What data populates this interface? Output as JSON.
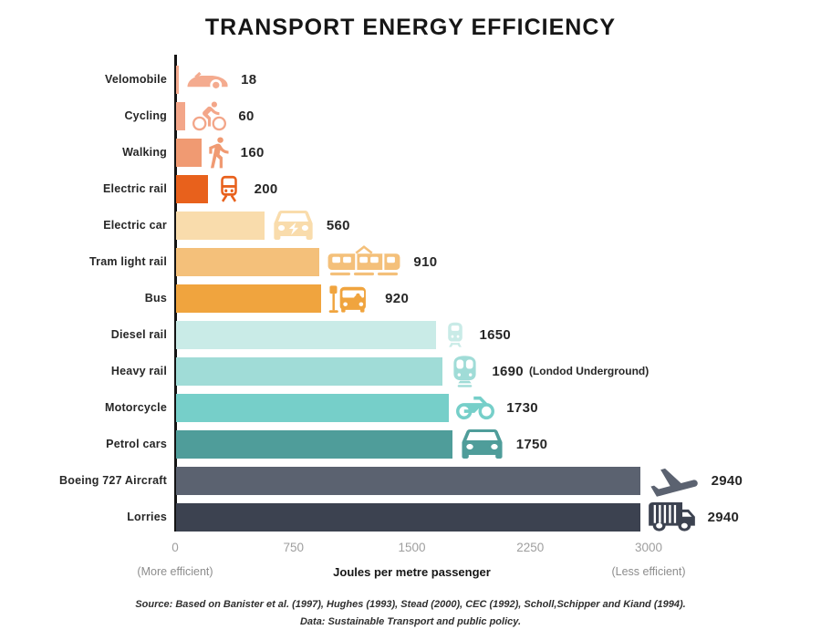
{
  "chart_data": {
    "type": "bar",
    "orientation": "horizontal",
    "title": "TRANSPORT ENERGY EFFICIENCY",
    "categories": [
      "Velomobile",
      "Cycling",
      "Walking",
      "Electric rail",
      "Electric car",
      "Tram light rail",
      "Bus",
      "Diesel rail",
      "Heavy rail",
      "Motorcycle",
      "Petrol cars",
      "Boeing 727 Aircraft",
      "Lorries"
    ],
    "values": [
      18,
      60,
      160,
      200,
      560,
      910,
      920,
      1650,
      1690,
      1730,
      1750,
      2940,
      2940
    ],
    "value_labels": [
      "18",
      "60",
      "160",
      "200",
      "560",
      "910",
      "920",
      "1650",
      "1690",
      "1730",
      "1750",
      "2940",
      "2940"
    ],
    "value_notes": [
      "",
      "",
      "",
      "",
      "",
      "",
      "",
      "",
      "(Londod Underground)",
      "",
      "",
      "",
      ""
    ],
    "bar_colors": [
      "#F4AB8F",
      "#F3A689",
      "#F09A72",
      "#E8611C",
      "#F9DCAC",
      "#F4C07A",
      "#F0A43E",
      "#C9EBE7",
      "#A0DCD7",
      "#76CFC9",
      "#4F9D9A",
      "#5B6270",
      "#3C4250"
    ],
    "icons": [
      "velomobile-icon",
      "bicycle-icon",
      "pedestrian-icon",
      "electric-rail-icon",
      "electric-car-icon",
      "tram-icon",
      "bus-icon",
      "diesel-rail-icon",
      "underground-train-icon",
      "motorcycle-icon",
      "car-icon",
      "airplane-icon",
      "lorry-icon"
    ],
    "xlabel": "Joules per metre passenger",
    "xticks": [
      0,
      750,
      1500,
      2250,
      3000
    ],
    "xlim": [
      0,
      3000
    ],
    "x_annotations": {
      "left": "(More efficient)",
      "right": "(Less efficient)"
    },
    "grid": false,
    "legend": false,
    "axis_color": "#141414",
    "tick_color": "#9e9e9e"
  },
  "footer": {
    "source_line": "Source: Based on Banister et al. (1997), Hughes (1993), Stead (2000), CEC (1992), Scholl,Schipper and Kiand (1994).",
    "data_line": "Data: Sustainable Transport and public policy."
  }
}
